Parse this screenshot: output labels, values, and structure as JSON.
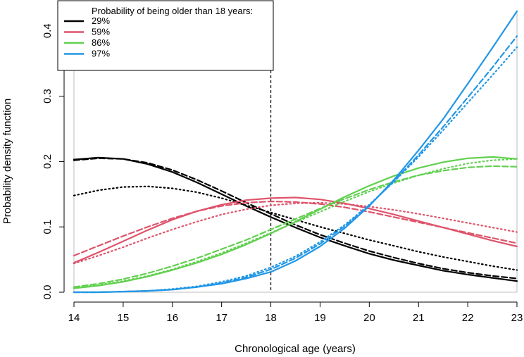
{
  "chart_data": {
    "type": "line",
    "title": "",
    "xlabel": "Chronological age (years)",
    "ylabel": "Probability density function",
    "xlim": [
      14,
      23
    ],
    "ylim": [
      0,
      0.43
    ],
    "xticks": [
      14,
      15,
      16,
      17,
      18,
      19,
      20,
      21,
      22,
      23
    ],
    "yticks": [
      0.0,
      0.1,
      0.2,
      0.3,
      0.4
    ],
    "ytick_labels": [
      "0.0",
      "0.1",
      "0.2",
      "0.3",
      "0.4"
    ],
    "threshold_x": 18,
    "legend": {
      "title": "Probability of being older than 18 years:",
      "position": "top-left",
      "entries": [
        "29%",
        "59%",
        "86%",
        "97%"
      ]
    },
    "line_styles": [
      "solid",
      "dashed",
      "dotted"
    ],
    "series": [
      {
        "name": "29%",
        "color": "#000000",
        "x": [
          14,
          14.5,
          15,
          15.5,
          16,
          16.5,
          17,
          17.5,
          18,
          18.5,
          19,
          19.5,
          20,
          20.5,
          21,
          21.5,
          22,
          22.5,
          23
        ],
        "solid": [
          0.203,
          0.206,
          0.204,
          0.196,
          0.184,
          0.168,
          0.15,
          0.132,
          0.115,
          0.099,
          0.084,
          0.071,
          0.059,
          0.049,
          0.041,
          0.033,
          0.027,
          0.022,
          0.017
        ],
        "dashed": [
          0.202,
          0.205,
          0.204,
          0.198,
          0.187,
          0.172,
          0.155,
          0.137,
          0.12,
          0.103,
          0.088,
          0.075,
          0.063,
          0.053,
          0.044,
          0.036,
          0.03,
          0.025,
          0.021
        ],
        "dotted": [
          0.148,
          0.156,
          0.161,
          0.162,
          0.159,
          0.153,
          0.144,
          0.133,
          0.122,
          0.111,
          0.1,
          0.09,
          0.08,
          0.071,
          0.062,
          0.054,
          0.047,
          0.04,
          0.034
        ]
      },
      {
        "name": "59%",
        "color": "#DF536B",
        "x": [
          14,
          14.5,
          15,
          15.5,
          16,
          16.5,
          17,
          17.5,
          18,
          18.5,
          19,
          19.5,
          20,
          20.5,
          21,
          21.5,
          22,
          22.5,
          23
        ],
        "solid": [
          0.045,
          0.061,
          0.078,
          0.095,
          0.111,
          0.124,
          0.134,
          0.141,
          0.144,
          0.145,
          0.142,
          0.136,
          0.128,
          0.119,
          0.109,
          0.099,
          0.089,
          0.079,
          0.07
        ],
        "dashed": [
          0.056,
          0.071,
          0.086,
          0.1,
          0.113,
          0.124,
          0.132,
          0.137,
          0.139,
          0.138,
          0.135,
          0.13,
          0.123,
          0.115,
          0.107,
          0.099,
          0.091,
          0.083,
          0.075
        ],
        "dotted": [
          0.044,
          0.056,
          0.069,
          0.083,
          0.096,
          0.108,
          0.119,
          0.127,
          0.133,
          0.136,
          0.137,
          0.135,
          0.131,
          0.126,
          0.12,
          0.113,
          0.106,
          0.099,
          0.092
        ]
      },
      {
        "name": "86%",
        "color": "#61D04F",
        "x": [
          14,
          14.5,
          15,
          15.5,
          16,
          16.5,
          17,
          17.5,
          18,
          18.5,
          19,
          19.5,
          20,
          20.5,
          21,
          21.5,
          22,
          22.5,
          23
        ],
        "solid": [
          0.006,
          0.01,
          0.016,
          0.024,
          0.034,
          0.045,
          0.058,
          0.073,
          0.09,
          0.108,
          0.127,
          0.146,
          0.163,
          0.178,
          0.19,
          0.199,
          0.205,
          0.207,
          0.204
        ],
        "dashed": [
          0.008,
          0.013,
          0.02,
          0.029,
          0.04,
          0.052,
          0.066,
          0.08,
          0.096,
          0.112,
          0.128,
          0.143,
          0.157,
          0.169,
          0.179,
          0.186,
          0.191,
          0.193,
          0.192
        ],
        "dotted": [
          0.007,
          0.011,
          0.017,
          0.025,
          0.035,
          0.047,
          0.06,
          0.075,
          0.091,
          0.107,
          0.123,
          0.139,
          0.154,
          0.167,
          0.179,
          0.189,
          0.197,
          0.202,
          0.204
        ]
      },
      {
        "name": "97%",
        "color": "#2297E6",
        "x": [
          14,
          14.5,
          15,
          15.5,
          16,
          16.5,
          17,
          17.5,
          18,
          18.5,
          19,
          19.5,
          20,
          20.5,
          21,
          21.5,
          22,
          22.5,
          23
        ],
        "solid": [
          0.0,
          0.0,
          0.001,
          0.002,
          0.004,
          0.008,
          0.013,
          0.021,
          0.031,
          0.048,
          0.07,
          0.098,
          0.132,
          0.172,
          0.217,
          0.265,
          0.319,
          0.374,
          0.43
        ],
        "dashed": [
          0.0,
          0.0,
          0.001,
          0.002,
          0.004,
          0.008,
          0.014,
          0.023,
          0.035,
          0.052,
          0.074,
          0.101,
          0.133,
          0.17,
          0.21,
          0.253,
          0.298,
          0.344,
          0.392
        ],
        "dotted": [
          0.0,
          0.0,
          0.001,
          0.002,
          0.005,
          0.009,
          0.016,
          0.025,
          0.038,
          0.055,
          0.077,
          0.103,
          0.134,
          0.169,
          0.207,
          0.248,
          0.29,
          0.332,
          0.375
        ]
      }
    ]
  }
}
